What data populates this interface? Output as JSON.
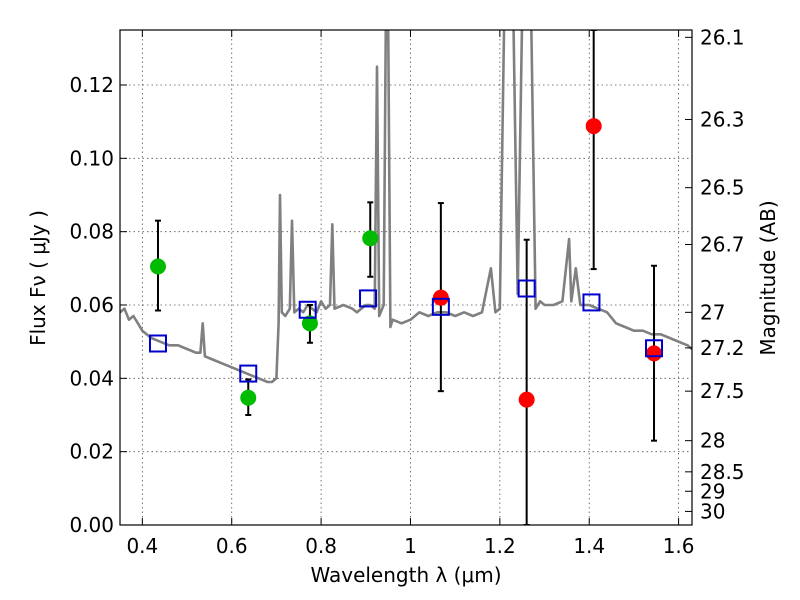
{
  "chart_data": {
    "type": "scatter",
    "xlabel": "Wavelength  λ (μm)",
    "ylabel": "Flux  Fν  ( μJy )",
    "ylabel_right": "Magnitude (AB)",
    "xlim": [
      0.35,
      1.63
    ],
    "ylim": [
      0.0,
      0.135
    ],
    "grid": true,
    "x_ticks": [
      0.4,
      0.6,
      0.8,
      1.0,
      1.2,
      1.4,
      1.6
    ],
    "x_tick_labels": [
      "0.4",
      "0.6",
      "0.8",
      "1",
      "1.2",
      "1.4",
      "1.6"
    ],
    "y_ticks": [
      0.0,
      0.02,
      0.04,
      0.06,
      0.08,
      0.1,
      0.12
    ],
    "y_tick_labels": [
      "0.00",
      "0.02",
      "0.04",
      "0.06",
      "0.08",
      "0.10",
      "0.12"
    ],
    "right_ticks": [
      {
        "label": "26.1",
        "flux": 0.133
      },
      {
        "label": "26.3",
        "flux": 0.1106
      },
      {
        "label": "26.5",
        "flux": 0.092
      },
      {
        "label": "26.7",
        "flux": 0.0765
      },
      {
        "label": "27",
        "flux": 0.058
      },
      {
        "label": "27.2",
        "flux": 0.0483
      },
      {
        "label": "27.5",
        "flux": 0.0365
      },
      {
        "label": "28",
        "flux": 0.023
      },
      {
        "label": "28.5",
        "flux": 0.0145
      },
      {
        "label": "29",
        "flux": 0.0092
      },
      {
        "label": "30",
        "flux": 0.0037
      }
    ],
    "series": [
      {
        "marker": "circle",
        "color": "#00bb00",
        "points": [
          {
            "x": 0.435,
            "y": 0.0705,
            "err_lo": 0.0585,
            "err_hi": 0.083
          },
          {
            "x": 0.637,
            "y": 0.0347,
            "err_lo": 0.03,
            "err_hi": 0.0397
          },
          {
            "x": 0.775,
            "y": 0.055,
            "err_lo": 0.0497,
            "err_hi": 0.06
          },
          {
            "x": 0.91,
            "y": 0.0782,
            "err_lo": 0.0677,
            "err_hi": 0.088
          }
        ]
      },
      {
        "marker": "circle",
        "color": "#ff0000",
        "points": [
          {
            "x": 1.068,
            "y": 0.062,
            "err_lo": 0.0365,
            "err_hi": 0.0878
          },
          {
            "x": 1.26,
            "y": 0.0342,
            "err_lo": 0.0,
            "err_hi": 0.0778
          },
          {
            "x": 1.41,
            "y": 0.1088,
            "err_lo": 0.0698,
            "err_hi": 0.135
          },
          {
            "x": 1.545,
            "y": 0.0468,
            "err_lo": 0.023,
            "err_hi": 0.0707
          }
        ]
      },
      {
        "marker": "square",
        "color": "#0000cc",
        "points": [
          {
            "x": 0.435,
            "y": 0.0495
          },
          {
            "x": 0.637,
            "y": 0.0413
          },
          {
            "x": 0.77,
            "y": 0.0587
          },
          {
            "x": 0.905,
            "y": 0.0618
          },
          {
            "x": 1.068,
            "y": 0.0595
          },
          {
            "x": 1.26,
            "y": 0.0645
          },
          {
            "x": 1.405,
            "y": 0.0607
          },
          {
            "x": 1.545,
            "y": 0.0482
          }
        ]
      }
    ],
    "model_spectrum": {
      "color": "#808080",
      "x": [
        0.35,
        0.36,
        0.37,
        0.38,
        0.39,
        0.4,
        0.42,
        0.44,
        0.46,
        0.48,
        0.5,
        0.52,
        0.53,
        0.535,
        0.54,
        0.56,
        0.58,
        0.6,
        0.62,
        0.64,
        0.66,
        0.68,
        0.69,
        0.7,
        0.705,
        0.708,
        0.712,
        0.72,
        0.73,
        0.735,
        0.74,
        0.75,
        0.76,
        0.77,
        0.78,
        0.79,
        0.8,
        0.81,
        0.82,
        0.825,
        0.83,
        0.85,
        0.87,
        0.88,
        0.89,
        0.9,
        0.91,
        0.92,
        0.925,
        0.93,
        0.94,
        0.945,
        0.95,
        0.955,
        0.96,
        0.98,
        1.0,
        1.02,
        1.04,
        1.06,
        1.08,
        1.1,
        1.12,
        1.14,
        1.16,
        1.18,
        1.19,
        1.2,
        1.21,
        1.22,
        1.23,
        1.24,
        1.25,
        1.26,
        1.27,
        1.28,
        1.29,
        1.3,
        1.32,
        1.34,
        1.355,
        1.36,
        1.37,
        1.38,
        1.4,
        1.42,
        1.44,
        1.46,
        1.48,
        1.5,
        1.52,
        1.54,
        1.56,
        1.58,
        1.6,
        1.62,
        1.63
      ],
      "y": [
        0.058,
        0.059,
        0.056,
        0.057,
        0.055,
        0.053,
        0.051,
        0.05,
        0.049,
        0.049,
        0.048,
        0.047,
        0.047,
        0.055,
        0.046,
        0.045,
        0.044,
        0.043,
        0.042,
        0.041,
        0.04,
        0.039,
        0.039,
        0.04,
        0.055,
        0.09,
        0.058,
        0.057,
        0.059,
        0.083,
        0.058,
        0.059,
        0.058,
        0.06,
        0.059,
        0.058,
        0.061,
        0.059,
        0.06,
        0.082,
        0.059,
        0.06,
        0.059,
        0.058,
        0.059,
        0.06,
        0.06,
        0.059,
        0.125,
        0.057,
        0.06,
        0.14,
        0.14,
        0.054,
        0.056,
        0.055,
        0.056,
        0.058,
        0.057,
        0.058,
        0.058,
        0.057,
        0.058,
        0.057,
        0.058,
        0.07,
        0.058,
        0.059,
        0.14,
        0.14,
        0.14,
        0.063,
        0.14,
        0.14,
        0.14,
        0.059,
        0.061,
        0.06,
        0.06,
        0.061,
        0.078,
        0.061,
        0.07,
        0.06,
        0.06,
        0.059,
        0.058,
        0.055,
        0.054,
        0.053,
        0.053,
        0.052,
        0.052,
        0.051,
        0.05,
        0.049,
        0.048
      ]
    }
  }
}
